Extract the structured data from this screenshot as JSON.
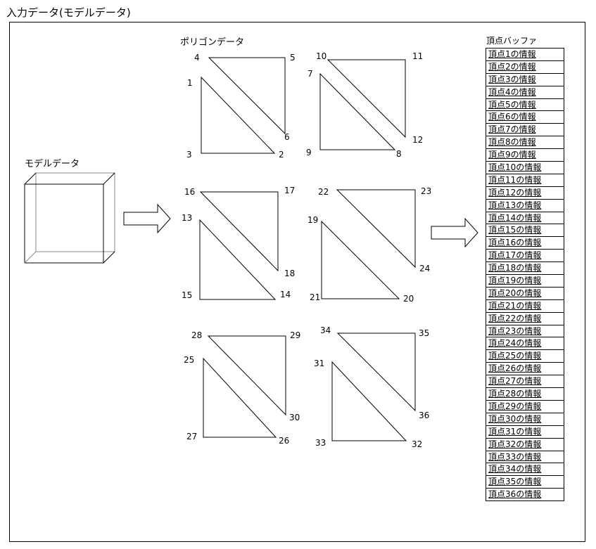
{
  "title": "入力データ(モデルデータ)",
  "model_label": "モデルデータ",
  "polygon_label": "ポリゴンデータ",
  "buffer_label": "頂点バッファ",
  "vertex_numbers": [
    "1",
    "2",
    "3",
    "4",
    "5",
    "6",
    "7",
    "8",
    "9",
    "10",
    "11",
    "12",
    "13",
    "14",
    "15",
    "16",
    "17",
    "18",
    "19",
    "20",
    "21",
    "22",
    "23",
    "24",
    "25",
    "26",
    "27",
    "28",
    "29",
    "30",
    "31",
    "32",
    "33",
    "34",
    "35",
    "36"
  ],
  "buffer_rows": [
    "頂点1の情報",
    "頂点2の情報",
    "頂点3の情報",
    "頂点4の情報",
    "頂点5の情報",
    "頂点6の情報",
    "頂点7の情報",
    "頂点8の情報",
    "頂点9の情報",
    "頂点10の情報",
    "頂点11の情報",
    "頂点12の情報",
    "頂点13の情報",
    "頂点14の情報",
    "頂点15の情報",
    "頂点16の情報",
    "頂点17の情報",
    "頂点18の情報",
    "頂点19の情報",
    "頂点20の情報",
    "頂点21の情報",
    "頂点22の情報",
    "頂点23の情報",
    "頂点24の情報",
    "頂点25の情報",
    "頂点26の情報",
    "頂点27の情報",
    "頂点28の情報",
    "頂点29の情報",
    "頂点30の情報",
    "頂点31の情報",
    "頂点32の情報",
    "頂点33の情報",
    "頂点34の情報",
    "頂点35の情報",
    "頂点36の情報"
  ]
}
